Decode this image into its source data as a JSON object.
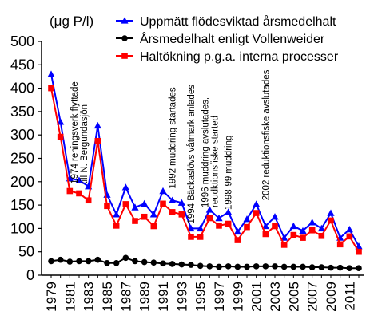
{
  "chart_data": {
    "type": "line",
    "ylabel": "(μg P/l)",
    "ylim": [
      0,
      500
    ],
    "yticks": [
      0,
      50,
      100,
      150,
      200,
      250,
      300,
      350,
      400,
      450,
      500
    ],
    "xlim": [
      1979,
      2012
    ],
    "xticks": [
      1979,
      1981,
      1983,
      1985,
      1987,
      1989,
      1991,
      1993,
      1995,
      1997,
      1999,
      2001,
      2003,
      2005,
      2007,
      2009,
      2011
    ],
    "x": [
      1979,
      1980,
      1981,
      1982,
      1983,
      1984,
      1985,
      1986,
      1987,
      1988,
      1989,
      1990,
      1991,
      1992,
      1993,
      1994,
      1995,
      1996,
      1997,
      1998,
      1999,
      2000,
      2001,
      2002,
      2003,
      2004,
      2005,
      2006,
      2007,
      2008,
      2009,
      2010,
      2011,
      2012
    ],
    "series": [
      {
        "name": "Uppmätt flödesviktad årsmedelhalt",
        "color": "#0000ff",
        "marker": "triangle",
        "values": [
          430,
          328,
          207,
          203,
          190,
          320,
          172,
          130,
          188,
          145,
          153,
          130,
          180,
          160,
          155,
          100,
          100,
          140,
          122,
          135,
          93,
          120,
          152,
          105,
          125,
          80,
          105,
          95,
          113,
          100,
          133,
          80,
          98,
          62
        ]
      },
      {
        "name": "Årsmedelhalt enligt Vollenweider",
        "color": "#000000",
        "marker": "circle",
        "values": [
          30,
          33,
          29,
          30,
          30,
          33,
          26,
          26,
          37,
          30,
          28,
          27,
          25,
          24,
          23,
          22,
          20,
          19,
          18,
          19,
          18,
          18,
          19,
          19,
          19,
          18,
          18,
          18,
          17,
          17,
          16,
          16,
          15,
          15
        ]
      },
      {
        "name": "Haltökning p.g.a. interna processer",
        "color": "#ff0000",
        "marker": "square",
        "values": [
          400,
          296,
          180,
          175,
          160,
          287,
          148,
          106,
          152,
          116,
          125,
          105,
          153,
          135,
          130,
          82,
          82,
          122,
          106,
          110,
          75,
          103,
          133,
          88,
          105,
          65,
          86,
          80,
          96,
          84,
          117,
          66,
          83,
          50
        ]
      }
    ],
    "annotations": [
      {
        "year": 1982,
        "value": 195,
        "lines": [
          "1974 reningsverk flyttade",
          "till N. Bergundasjön"
        ]
      },
      {
        "year": 1992,
        "value": 185,
        "lines": [
          "1992 muddring startades"
        ]
      },
      {
        "year": 1994,
        "value": 110,
        "lines": [
          "1994 Bäckaslövs våtmark anlades"
        ]
      },
      {
        "year": 1996,
        "value": 145,
        "lines": [
          "1996 muddring avslutades,",
          "reudktionsfiske started"
        ]
      },
      {
        "year": 1998,
        "value": 140,
        "lines": [
          "1998-99 muddring"
        ]
      },
      {
        "year": 2002,
        "value": 160,
        "lines": [
          "2002 reduktionsfiske avslutades"
        ]
      }
    ]
  }
}
